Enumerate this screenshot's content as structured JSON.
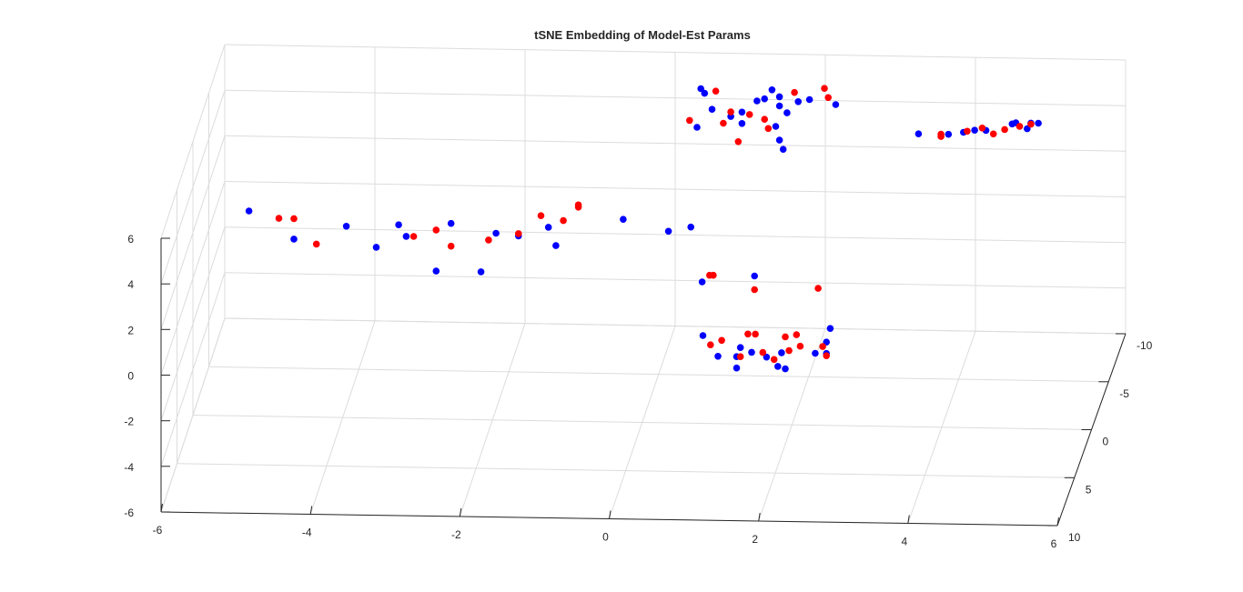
{
  "chart_data": {
    "type": "scatter",
    "title": "tSNE Embedding of Model-Est Params",
    "xlabel": "",
    "ylabel": "",
    "zlabel": "",
    "xlim": [
      -6,
      6
    ],
    "ylim": [
      -10,
      10
    ],
    "zlim": [
      -6,
      6
    ],
    "x_ticks": [
      "-6",
      "-4",
      "-2",
      "0",
      "2",
      "4",
      "6"
    ],
    "y_ticks": [
      "-10",
      "-5",
      "0",
      "5",
      "10"
    ],
    "z_ticks": [
      "-6",
      "-4",
      "-2",
      "0",
      "2",
      "4",
      "6"
    ],
    "grid": true,
    "series": [
      {
        "color": "#0000ff",
        "points": [
          [
            -5.2,
            1.2,
            3.5
          ],
          [
            -4.6,
            1.2,
            2.3
          ],
          [
            -3.9,
            1.2,
            2.9
          ],
          [
            -3.5,
            1.2,
            2.0
          ],
          [
            -3.1,
            1.2,
            2.5
          ],
          [
            -3.2,
            1.2,
            3.0
          ],
          [
            -2.7,
            1.2,
            1.0
          ],
          [
            -2.5,
            1.2,
            3.1
          ],
          [
            -2.1,
            1.2,
            1.0
          ],
          [
            -1.9,
            1.2,
            2.7
          ],
          [
            -1.6,
            1.2,
            2.6
          ],
          [
            -1.2,
            1.2,
            3.0
          ],
          [
            -1.1,
            1.2,
            2.2
          ],
          [
            -0.2,
            1.2,
            3.4
          ],
          [
            0.35,
            0.0,
            2.4
          ],
          [
            0.65,
            0.0,
            2.6
          ],
          [
            0.6,
            -3.0,
            5.7
          ],
          [
            0.8,
            -3.0,
            6.5
          ],
          [
            0.7,
            -3.0,
            7.2
          ],
          [
            0.65,
            -3.0,
            7.4
          ],
          [
            1.2,
            -3.0,
            5.9
          ],
          [
            1.05,
            -3.0,
            6.2
          ],
          [
            1.2,
            -3.0,
            6.4
          ],
          [
            1.4,
            -3.0,
            6.9
          ],
          [
            1.5,
            -3.0,
            7.0
          ],
          [
            1.7,
            -3.0,
            6.7
          ],
          [
            1.65,
            -3.0,
            5.8
          ],
          [
            1.6,
            -3.0,
            7.4
          ],
          [
            1.7,
            -3.0,
            7.1
          ],
          [
            1.8,
            -3.0,
            6.4
          ],
          [
            1.95,
            -3.0,
            6.9
          ],
          [
            2.1,
            -3.0,
            7.0
          ],
          [
            2.45,
            -3.0,
            6.8
          ],
          [
            1.7,
            -3.0,
            5.2
          ],
          [
            1.75,
            -3.0,
            4.8
          ],
          [
            0.8,
            0.0,
            0.2
          ],
          [
            1.5,
            0.0,
            0.5
          ],
          [
            0.9,
            2.0,
            -1.3
          ],
          [
            1.35,
            2.0,
            -2.2
          ],
          [
            1.55,
            2.0,
            -2.0
          ],
          [
            1.4,
            2.0,
            -1.8
          ],
          [
            1.95,
            2.0,
            -2.0
          ],
          [
            2.55,
            2.0,
            -1.5
          ],
          [
            2.6,
            2.0,
            -0.9
          ],
          [
            1.75,
            2.0,
            -2.2
          ],
          [
            1.1,
            2.0,
            -2.2
          ],
          [
            1.35,
            2.0,
            -2.7
          ],
          [
            1.9,
            2.0,
            -2.6
          ],
          [
            2.4,
            2.0,
            -2.0
          ],
          [
            2.55,
            2.0,
            -2.0
          ],
          [
            2.0,
            2.0,
            -2.7
          ],
          [
            3.6,
            -2.0,
            6.0
          ],
          [
            4.0,
            -2.0,
            6.0
          ],
          [
            4.2,
            -2.0,
            6.1
          ],
          [
            4.35,
            -2.0,
            6.2
          ],
          [
            4.5,
            -2.0,
            6.2
          ],
          [
            4.85,
            -2.0,
            6.5
          ],
          [
            4.9,
            -2.0,
            6.55
          ],
          [
            5.05,
            -2.0,
            6.3
          ],
          [
            5.1,
            -2.0,
            6.55
          ],
          [
            5.2,
            -2.0,
            6.55
          ]
        ]
      },
      {
        "color": "#ff0000",
        "points": [
          [
            -4.8,
            1.2,
            3.2
          ],
          [
            -4.6,
            1.2,
            3.2
          ],
          [
            -4.3,
            1.2,
            2.1
          ],
          [
            -3.0,
            1.2,
            2.5
          ],
          [
            -2.7,
            1.2,
            2.8
          ],
          [
            -2.5,
            1.2,
            2.1
          ],
          [
            -2.0,
            1.2,
            2.4
          ],
          [
            -1.6,
            1.2,
            2.7
          ],
          [
            -1.3,
            1.2,
            3.5
          ],
          [
            -1.0,
            1.2,
            3.3
          ],
          [
            -0.8,
            1.2,
            3.9
          ],
          [
            -0.8,
            1.2,
            4.0
          ],
          [
            0.5,
            -3.0,
            6.0
          ],
          [
            0.85,
            -3.0,
            7.3
          ],
          [
            1.05,
            -3.0,
            6.4
          ],
          [
            0.95,
            -3.0,
            5.9
          ],
          [
            1.15,
            -3.0,
            5.1
          ],
          [
            1.3,
            -3.0,
            6.3
          ],
          [
            1.5,
            -3.0,
            6.1
          ],
          [
            1.55,
            -3.0,
            5.7
          ],
          [
            1.9,
            -3.0,
            7.3
          ],
          [
            2.3,
            -3.0,
            7.5
          ],
          [
            2.35,
            -3.0,
            7.1
          ],
          [
            0.9,
            0.0,
            0.5
          ],
          [
            0.95,
            0.0,
            0.5
          ],
          [
            1.5,
            0.0,
            -0.1
          ],
          [
            2.35,
            0.0,
            0.0
          ],
          [
            1.0,
            2.0,
            -1.7
          ],
          [
            1.15,
            2.0,
            -1.5
          ],
          [
            1.5,
            2.0,
            -1.2
          ],
          [
            1.6,
            2.0,
            -1.2
          ],
          [
            2.0,
            2.0,
            -1.3
          ],
          [
            2.15,
            2.0,
            -1.2
          ],
          [
            2.05,
            2.0,
            -1.9
          ],
          [
            2.2,
            2.0,
            -1.7
          ],
          [
            2.5,
            2.0,
            -1.7
          ],
          [
            2.55,
            2.0,
            -2.1
          ],
          [
            1.4,
            2.0,
            -2.2
          ],
          [
            1.7,
            2.0,
            -2.0
          ],
          [
            1.85,
            2.0,
            -2.3
          ],
          [
            3.9,
            -2.0,
            6.0
          ],
          [
            3.9,
            -2.0,
            5.9
          ],
          [
            4.25,
            -2.0,
            6.15
          ],
          [
            4.45,
            -2.0,
            6.3
          ],
          [
            4.6,
            -2.0,
            6.05
          ],
          [
            4.75,
            -2.0,
            6.25
          ],
          [
            4.95,
            -2.0,
            6.4
          ],
          [
            5.1,
            -2.0,
            6.5
          ]
        ]
      }
    ]
  }
}
